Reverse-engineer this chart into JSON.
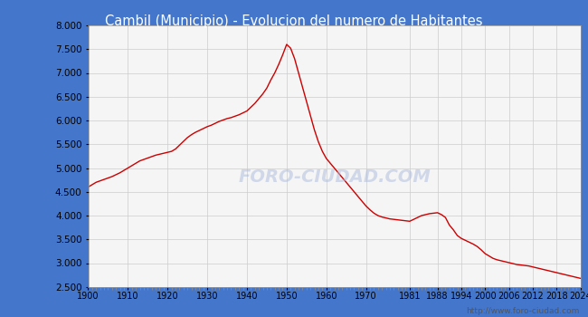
{
  "title": "Cambil (Municipio) - Evolucion del numero de Habitantes",
  "title_bg_color": "#4477cc",
  "title_text_color": "#ffffff",
  "line_color": "#cc0000",
  "fig_bg_color": "#4477cc",
  "plot_bg_color": "#f5f5f5",
  "outer_bg_color": "#ffffff",
  "grid_color": "#cccccc",
  "watermark": "FORO-CIUDAD.COM",
  "footer": "http://www.foro-ciudad.com",
  "ylim": [
    2500,
    8000
  ],
  "xlim": [
    1900,
    2024
  ],
  "yticks": [
    2500,
    3000,
    3500,
    4000,
    4500,
    5000,
    5500,
    6000,
    6500,
    7000,
    7500,
    8000
  ],
  "xticks": [
    1900,
    1910,
    1920,
    1930,
    1940,
    1950,
    1960,
    1970,
    1981,
    1988,
    1994,
    2000,
    2006,
    2012,
    2018,
    2024
  ],
  "years": [
    1900,
    1901,
    1902,
    1903,
    1904,
    1905,
    1906,
    1907,
    1908,
    1909,
    1910,
    1911,
    1912,
    1913,
    1914,
    1915,
    1916,
    1917,
    1918,
    1919,
    1920,
    1921,
    1922,
    1923,
    1924,
    1925,
    1926,
    1927,
    1928,
    1929,
    1930,
    1931,
    1932,
    1933,
    1934,
    1935,
    1936,
    1937,
    1938,
    1939,
    1940,
    1941,
    1942,
    1943,
    1944,
    1945,
    1946,
    1947,
    1948,
    1949,
    1950,
    1951,
    1952,
    1953,
    1954,
    1955,
    1956,
    1957,
    1958,
    1959,
    1960,
    1961,
    1962,
    1963,
    1964,
    1965,
    1966,
    1967,
    1968,
    1969,
    1970,
    1971,
    1972,
    1973,
    1974,
    1975,
    1976,
    1977,
    1978,
    1979,
    1980,
    1981,
    1982,
    1983,
    1984,
    1985,
    1986,
    1987,
    1988,
    1989,
    1990,
    1991,
    1992,
    1993,
    1994,
    1995,
    1996,
    1997,
    1998,
    1999,
    2000,
    2001,
    2002,
    2003,
    2004,
    2005,
    2006,
    2007,
    2008,
    2009,
    2010,
    2011,
    2012,
    2013,
    2014,
    2015,
    2016,
    2017,
    2018,
    2019,
    2020,
    2021,
    2022,
    2023,
    2024
  ],
  "population": [
    4600,
    4650,
    4700,
    4730,
    4760,
    4790,
    4820,
    4860,
    4900,
    4950,
    5000,
    5050,
    5100,
    5150,
    5180,
    5210,
    5240,
    5270,
    5290,
    5310,
    5330,
    5350,
    5400,
    5480,
    5560,
    5640,
    5700,
    5750,
    5790,
    5830,
    5870,
    5900,
    5940,
    5980,
    6010,
    6040,
    6060,
    6090,
    6120,
    6160,
    6200,
    6280,
    6360,
    6460,
    6560,
    6680,
    6850,
    7000,
    7180,
    7380,
    7600,
    7520,
    7300,
    7000,
    6700,
    6400,
    6100,
    5800,
    5550,
    5350,
    5200,
    5100,
    5000,
    4900,
    4800,
    4700,
    4600,
    4500,
    4400,
    4300,
    4200,
    4120,
    4050,
    4000,
    3970,
    3950,
    3930,
    3920,
    3910,
    3900,
    3890,
    3880,
    3920,
    3960,
    4000,
    4020,
    4040,
    4050,
    4060,
    4020,
    3960,
    3800,
    3700,
    3580,
    3520,
    3480,
    3440,
    3400,
    3350,
    3280,
    3200,
    3150,
    3100,
    3070,
    3050,
    3030,
    3010,
    2990,
    2970,
    2960,
    2950,
    2940,
    2920,
    2900,
    2880,
    2860,
    2840,
    2820,
    2800,
    2780,
    2760,
    2740,
    2720,
    2700,
    2680
  ]
}
